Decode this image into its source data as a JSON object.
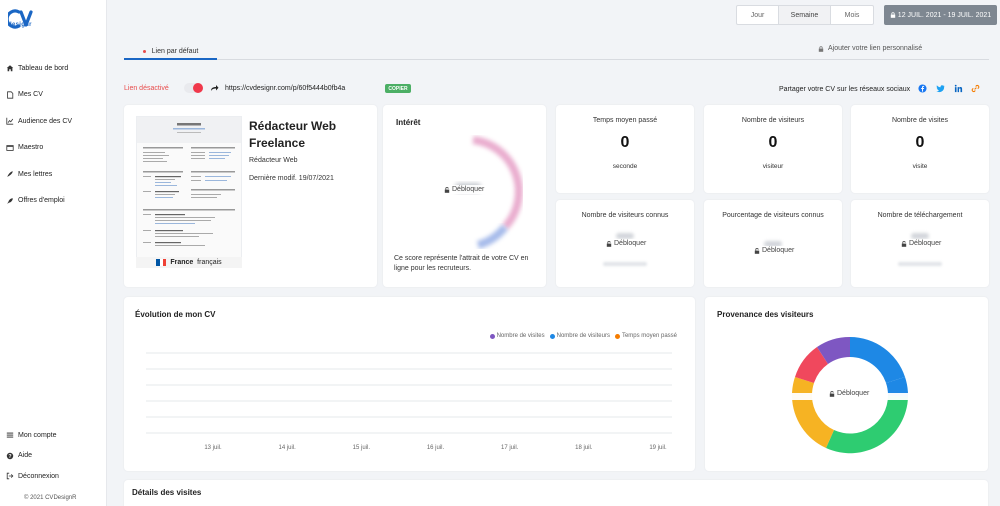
{
  "brand": {
    "logo_letters": "CV",
    "logo_sub": "designr",
    "accent": "#1a66c4"
  },
  "sidebar": {
    "items": [
      {
        "label": "Tableau de bord",
        "icon": "home-icon"
      },
      {
        "label": "Mes CV",
        "icon": "document-icon"
      },
      {
        "label": "Audience des CV",
        "icon": "chart-icon"
      },
      {
        "label": "Maestro",
        "icon": "video-icon"
      },
      {
        "label": "Mes lettres",
        "icon": "feather-icon"
      },
      {
        "label": "Offres d'emploi",
        "icon": "rocket-icon"
      }
    ],
    "bottom_items": [
      {
        "label": "Mon compte",
        "icon": "menu-icon"
      },
      {
        "label": "Aide",
        "icon": "question-icon"
      },
      {
        "label": "Déconnexion",
        "icon": "logout-icon"
      }
    ],
    "copyright": "© 2021 CVDesignR"
  },
  "period": {
    "options": [
      "Jour",
      "Semaine",
      "Mois"
    ],
    "selected": "Semaine",
    "date_range": "12 JUIL. 2021 - 19 JUIL. 2021"
  },
  "tabs": {
    "default_link": "Lien par défaut",
    "custom_link": "Ajouter votre lien personnalisé"
  },
  "link": {
    "status": "Lien désactivé",
    "enabled": false,
    "url": "https://cvdesignr.com/p/60f5444b0fb4a",
    "copy_label": "COPIER",
    "share_text": "Partager votre CV sur les réseaux sociaux",
    "social_icons": [
      "facebook-icon",
      "twitter-icon",
      "linkedin-icon",
      "link-icon"
    ]
  },
  "cv": {
    "title": "Rédacteur Web Freelance",
    "subtitle": "Rédacteur Web",
    "modified": "Dernière modif. 19/07/2021",
    "country": "France",
    "language": "français"
  },
  "interest": {
    "title": "Intérêt",
    "unlock": "Débloquer",
    "note": "Ce score représente l'attrait de votre CV en ligne pour les recruteurs."
  },
  "stats": {
    "avg_time": {
      "label": "Temps moyen passé",
      "value": "0",
      "unit": "seconde"
    },
    "visitors": {
      "label": "Nombre de visiteurs",
      "value": "0",
      "unit": "visiteur"
    },
    "visits": {
      "label": "Nombre de visites",
      "value": "0",
      "unit": "visite"
    },
    "known_visitors": {
      "label": "Nombre de visiteurs connus",
      "unlock": "Débloquer"
    },
    "visitor_percent": {
      "label": "Pourcentage de visiteurs connus",
      "unlock": "Débloquer"
    },
    "downloads": {
      "label": "Nombre de téléchargement",
      "unlock": "Débloquer"
    }
  },
  "evolution": {
    "title": "Évolution de mon CV",
    "legend": [
      {
        "name": "Nombre de visites",
        "color": "#7e57c2"
      },
      {
        "name": "Nombre de visiteurs",
        "color": "#1e88e5"
      },
      {
        "name": "Temps moyen passé",
        "color": "#f57c00"
      }
    ]
  },
  "provenance": {
    "title": "Provenance des visiteurs",
    "unlock": "Débloquer"
  },
  "details": {
    "title": "Détails des visites"
  },
  "chart_data": {
    "type": "line",
    "title": "Évolution de mon CV",
    "categories": [
      "13 juil.",
      "14 juil.",
      "15 juil.",
      "16 juil.",
      "17 juil.",
      "18 juil.",
      "19 juil."
    ],
    "series": [
      {
        "name": "Nombre de visites",
        "values": [
          0,
          0,
          0,
          0,
          0,
          0,
          0
        ]
      },
      {
        "name": "Nombre de visiteurs",
        "values": [
          0,
          0,
          0,
          0,
          0,
          0,
          0
        ]
      },
      {
        "name": "Temps moyen passé",
        "values": [
          0,
          0,
          0,
          0,
          0,
          0,
          0
        ]
      }
    ],
    "legend_position": "top-right",
    "grid": true
  }
}
